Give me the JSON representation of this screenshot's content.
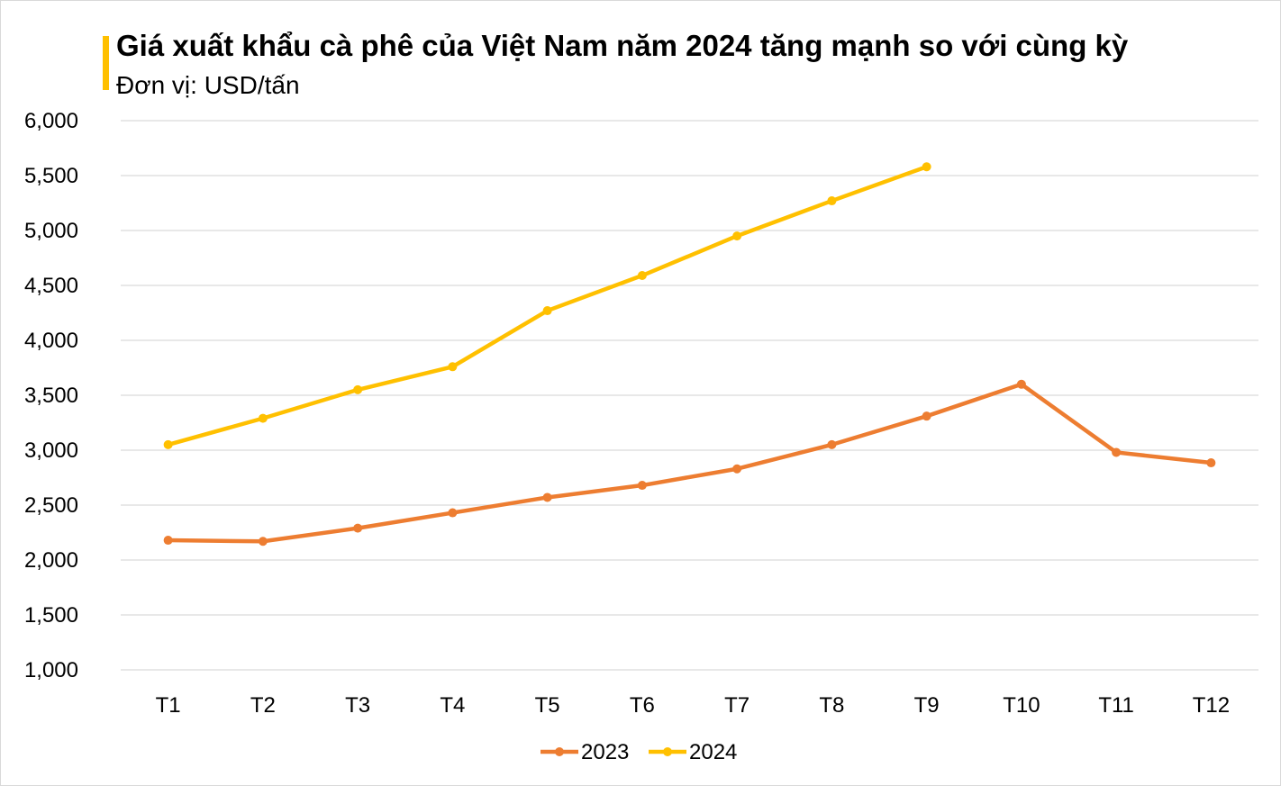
{
  "chart_data": {
    "type": "line",
    "title": "Giá xuất khẩu cà phê của Việt Nam năm 2024 tăng mạnh so với cùng kỳ",
    "subtitle": "Đơn vị: USD/tấn",
    "categories": [
      "T1",
      "T2",
      "T3",
      "T4",
      "T5",
      "T6",
      "T7",
      "T8",
      "T9",
      "T10",
      "T11",
      "T12"
    ],
    "series": [
      {
        "name": "2023",
        "color": "#ED7D31",
        "values": [
          2180,
          2170,
          2290,
          2430,
          2570,
          2680,
          2830,
          3050,
          3310,
          3600,
          2980,
          2885
        ]
      },
      {
        "name": "2024",
        "color": "#FFC000",
        "values": [
          3050,
          3290,
          3550,
          3760,
          4270,
          4590,
          4950,
          5270,
          5580,
          null,
          null,
          null
        ]
      }
    ],
    "ylim": [
      1000,
      6000
    ],
    "yticks": [
      "1,000",
      "1,500",
      "2,000",
      "2,500",
      "3,000",
      "3,500",
      "4,000",
      "4,500",
      "5,000",
      "5,500",
      "6,000"
    ],
    "grid": true,
    "legend": "bottom"
  }
}
